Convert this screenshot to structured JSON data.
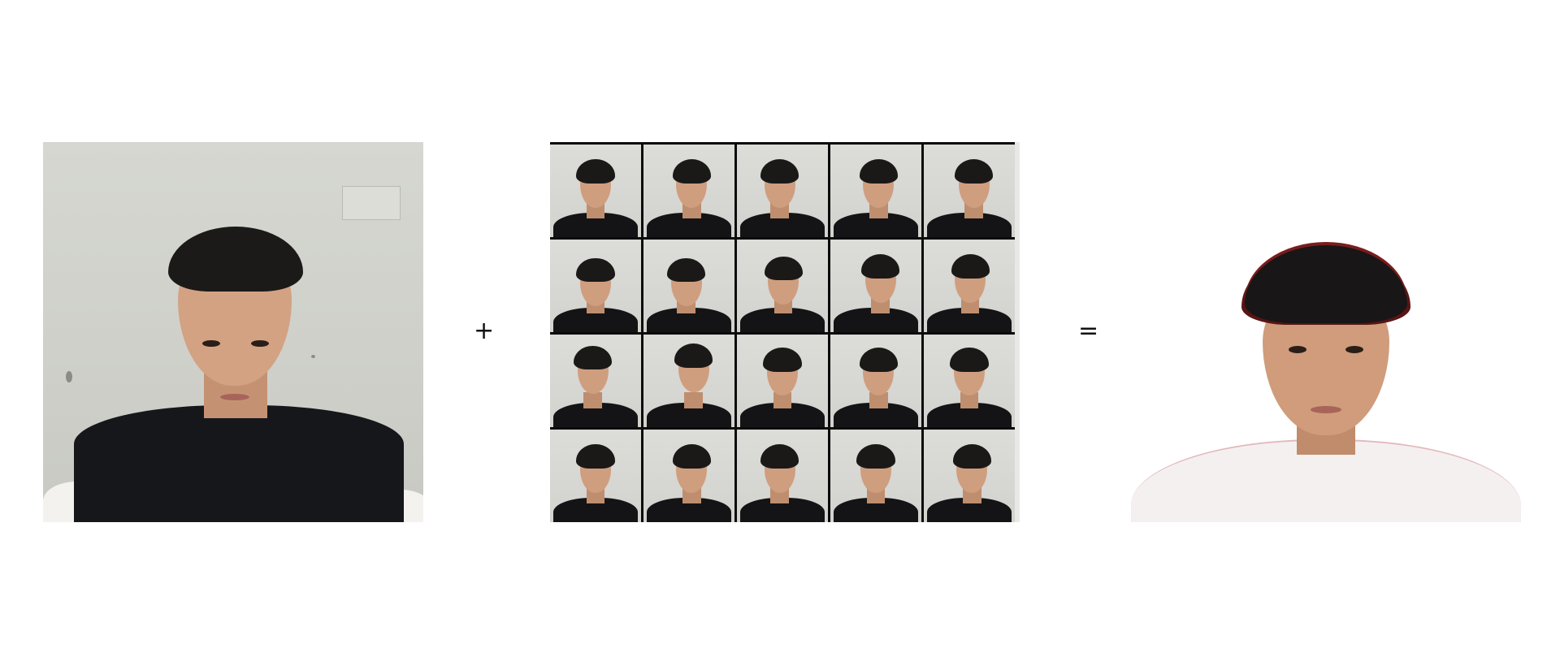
{
  "figure": {
    "operators": {
      "plus": "+",
      "equals": "="
    },
    "panels": {
      "input_photo": {
        "kind": "single-selfie-photo"
      },
      "pose_grid": {
        "kind": "contact-sheet",
        "columns": 5,
        "rows": 4
      },
      "output_avatar": {
        "kind": "cut-out-rendered-avatar"
      }
    }
  },
  "colors": {
    "background": "#ffffff",
    "grid_border": "#0b0b0b",
    "shirt_dark": "#16171a",
    "skin": "#d3a283",
    "hair": "#1b1a19",
    "avatar_shirt": "#f4f0f0",
    "avatar_hair_fringe": "#7a1c1c"
  }
}
